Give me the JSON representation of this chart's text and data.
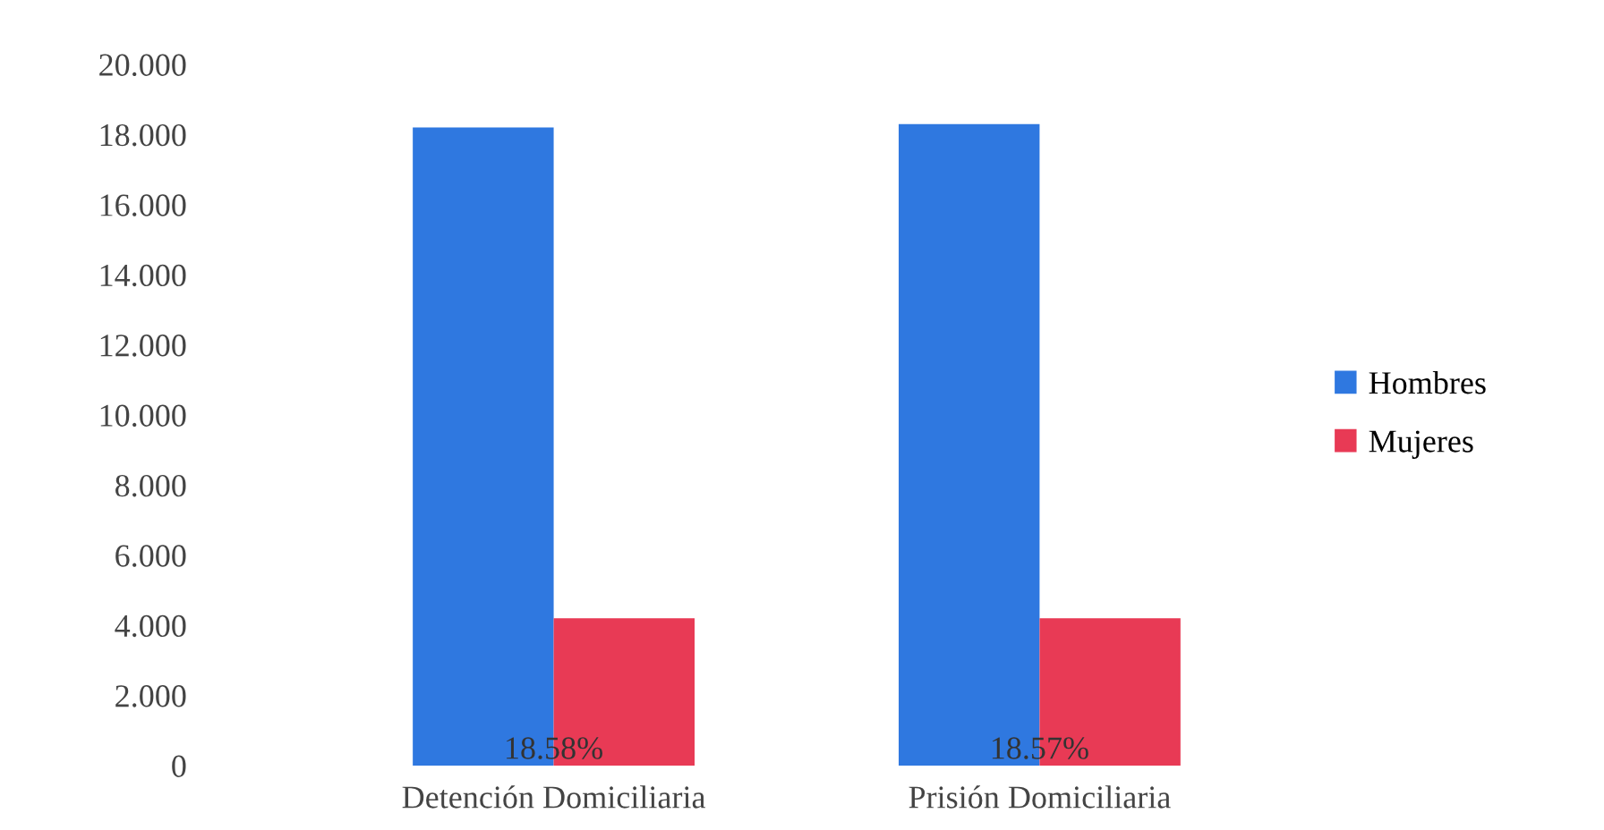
{
  "chart_data": {
    "type": "bar",
    "categories": [
      "Detención Domiciliaria",
      "Prisión Domiciliaria"
    ],
    "series": [
      {
        "name": "Hombres",
        "color": "#2f78e0",
        "values": [
          18.2,
          18.3
        ]
      },
      {
        "name": "Mujeres",
        "color": "#e83a55",
        "values": [
          4.2,
          4.2
        ]
      }
    ],
    "ylim": [
      0,
      20
    ],
    "yticks": [
      {
        "value": 0,
        "label": "0"
      },
      {
        "value": 2,
        "label": "2.000"
      },
      {
        "value": 4,
        "label": "4.000"
      },
      {
        "value": 6,
        "label": "6.000"
      },
      {
        "value": 8,
        "label": "8.000"
      },
      {
        "value": 10,
        "label": "10.000"
      },
      {
        "value": 12,
        "label": "12.000"
      },
      {
        "value": 14,
        "label": "14.000"
      },
      {
        "value": 16,
        "label": "16.000"
      },
      {
        "value": 18,
        "label": "18.000"
      },
      {
        "value": 20,
        "label": "20.000"
      }
    ],
    "annotations": [
      {
        "text": "18.58%",
        "x": "Detención Domiciliaria",
        "y": 0
      },
      {
        "text": "18.57%",
        "x": "Prisión Domiciliaria",
        "y": 0
      }
    ],
    "grid": false,
    "legend": "right"
  }
}
